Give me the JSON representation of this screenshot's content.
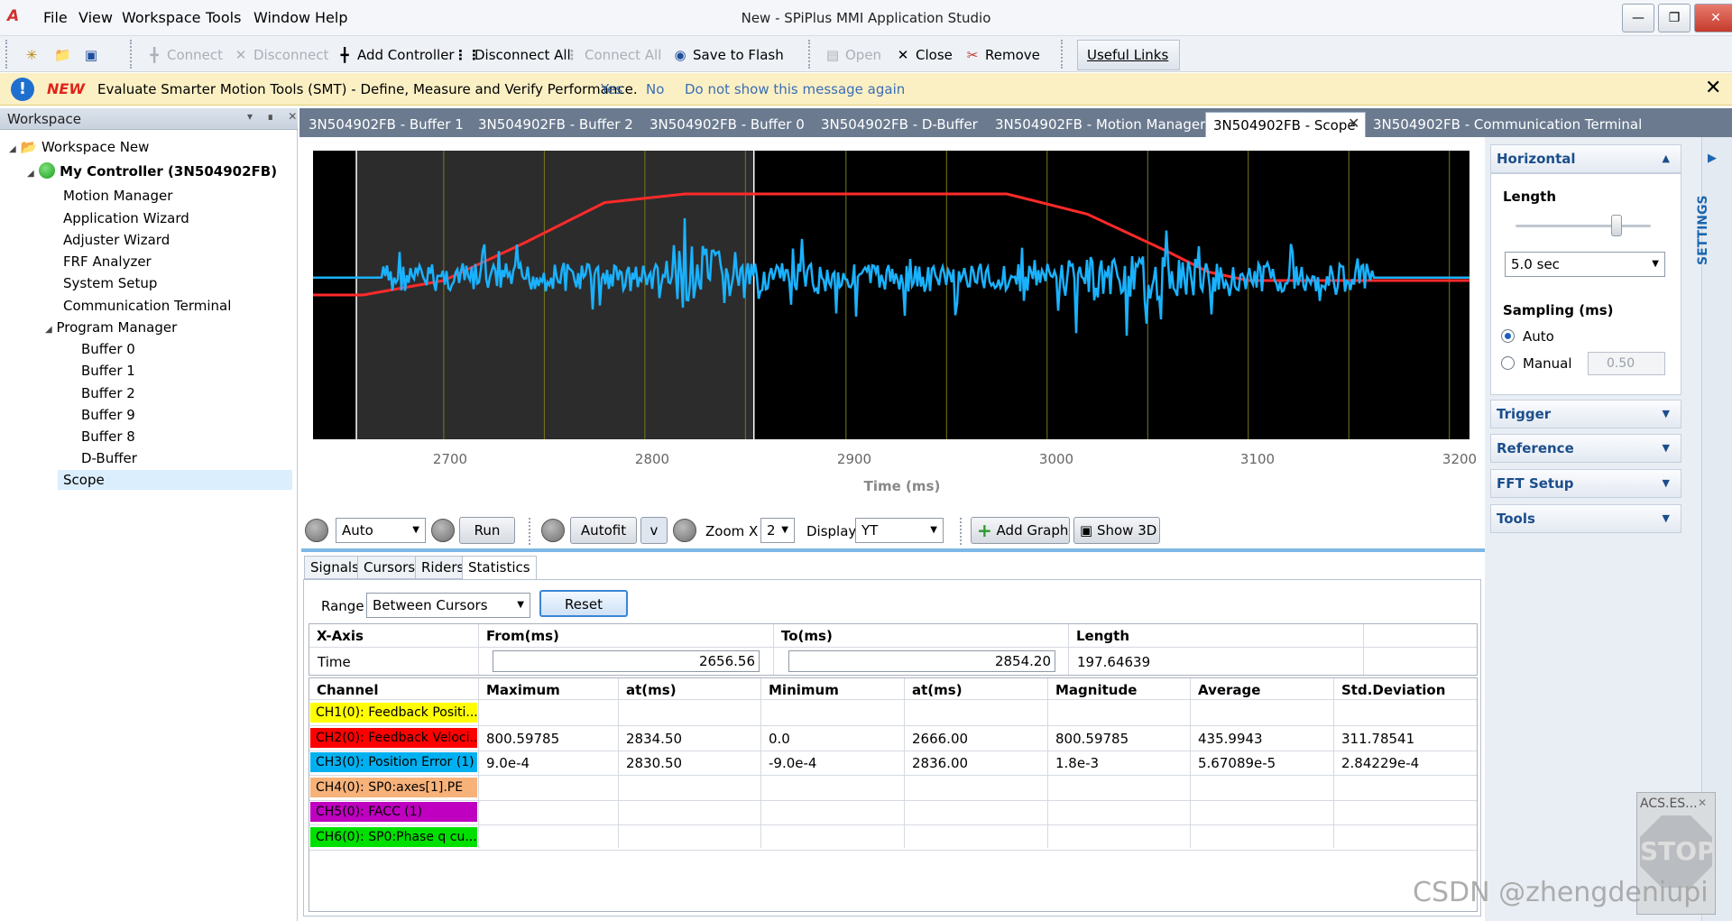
{
  "app": {
    "title": "New - SPiPlus MMI Application Studio",
    "menu": [
      "File",
      "View",
      "Workspace",
      "Tools",
      "Window",
      "Help"
    ]
  },
  "toolbar": {
    "connect": "Connect",
    "disconnect": "Disconnect",
    "add_controller": "Add Controller",
    "disconnect_all": "Disconnect All",
    "connect_all": "Connect All",
    "save_to_flash": "Save to Flash",
    "open": "Open",
    "close": "Close",
    "remove": "Remove",
    "useful_links": "Useful Links"
  },
  "banner": {
    "new_label": "NEW",
    "message": "Evaluate Smarter Motion Tools (SMT) - Define, Measure and Verify Performance.",
    "yes": "Yes",
    "no": "No",
    "dont_show": "Do not show this message again"
  },
  "workspace": {
    "header": "Workspace",
    "root": "Workspace New",
    "controller": "My Controller (3N504902FB)",
    "items": [
      "Motion Manager",
      "Application Wizard",
      "Adjuster Wizard",
      "FRF Analyzer",
      "System Setup",
      "Communication Terminal"
    ],
    "program_manager": "Program Manager",
    "buffers": [
      "Buffer 0",
      "Buffer 1",
      "Buffer 2",
      "Buffer 9",
      "Buffer 8",
      "D-Buffer"
    ],
    "scope": "Scope"
  },
  "tabs": [
    "3N504902FB - Buffer 1",
    "3N504902FB - Buffer 2",
    "3N504902FB - Buffer 0",
    "3N504902FB - D-Buffer",
    "3N504902FB - Motion Manager",
    "3N504902FB - Scope",
    "3N504902FB - Communication Terminal"
  ],
  "scope": {
    "x_ticks": [
      "2700",
      "2800",
      "2900",
      "3000",
      "3100",
      "3200"
    ],
    "x_label": "Time (ms)",
    "mode": "Auto",
    "run": "Run",
    "autofit": "Autofit",
    "v_button": "v",
    "zoom_label": "Zoom X",
    "zoom_value": "2",
    "display_label": "Display",
    "display_value": "YT",
    "add_graph": "Add Graph",
    "show_3d": "Show 3D"
  },
  "chart_data": {
    "type": "line",
    "xlabel": "Time (ms)",
    "xlim": [
      2635,
      3210
    ],
    "x_ticks": [
      2700,
      2800,
      2900,
      3000,
      3100,
      3200
    ],
    "cursors_ms": [
      2656.56,
      2854.2
    ],
    "series": [
      {
        "color": "#ff2a2a",
        "x": [
          2635,
          2660,
          2700,
          2740,
          2780,
          2820,
          2900,
          2980,
          3020,
          3060,
          3080,
          3100,
          3140,
          3210
        ],
        "values": [
          0.5,
          0.5,
          0.45,
          0.32,
          0.18,
          0.15,
          0.15,
          0.15,
          0.22,
          0.35,
          0.42,
          0.45,
          0.45,
          0.45
        ]
      }
    ]
  },
  "statistics": {
    "tabs": [
      "Signals",
      "Cursors",
      "Riders",
      "Statistics"
    ],
    "range_label": "Range",
    "range_value": "Between Cursors",
    "reset": "Reset",
    "xaxis_headers": [
      "X-Axis",
      "From(ms)",
      "To(ms)",
      "Length"
    ],
    "time_label": "Time",
    "from_value": "2656.56",
    "to_value": "2854.20",
    "length_value": "197.64639",
    "headers": [
      "Channel",
      "Maximum",
      "at(ms)",
      "Minimum",
      "at(ms)",
      "Magnitude",
      "Average",
      "Std.Deviation"
    ],
    "rows": [
      {
        "channel": "CH1(0): Feedback Positi...",
        "color": "#ffff00",
        "values": [
          "",
          "",
          "",
          "",
          "",
          "",
          ""
        ]
      },
      {
        "channel": "CH2(0): Feedback Veloci...",
        "color": "#ff0000",
        "values": [
          "800.59785",
          "2834.50",
          "0.0",
          "2666.00",
          "800.59785",
          "435.9943",
          "311.78541"
        ]
      },
      {
        "channel": "CH3(0): Position Error (1)",
        "color": "#00b0f0",
        "values": [
          "9.0e-4",
          "2830.50",
          "-9.0e-4",
          "2836.00",
          "1.8e-3",
          "5.67089e-5",
          "2.84229e-4"
        ]
      },
      {
        "channel": "CH4(0): SP0:axes[1].PE",
        "color": "#f7b27a",
        "values": [
          "",
          "",
          "",
          "",
          "",
          "",
          ""
        ]
      },
      {
        "channel": "CH5(0): FACC (1)",
        "color": "#c000c0",
        "values": [
          "",
          "",
          "",
          "",
          "",
          "",
          ""
        ]
      },
      {
        "channel": "CH6(0): SP0:Phase q cu...",
        "color": "#00e000",
        "values": [
          "",
          "",
          "",
          "",
          "",
          "",
          ""
        ]
      }
    ]
  },
  "settings": {
    "horizontal": "Horizontal",
    "length_label": "Length",
    "length_value": "5.0 sec",
    "sampling_label": "Sampling (ms)",
    "auto": "Auto",
    "manual": "Manual",
    "manual_value": "0.50",
    "trigger": "Trigger",
    "reference": "Reference",
    "fft_setup": "FFT Setup",
    "tools": "Tools",
    "side_label": "SETTINGS"
  },
  "stop_widget": {
    "title": "ACS.ES...",
    "label": "STOP"
  },
  "watermark": "CSDN @zhengdeniupi"
}
